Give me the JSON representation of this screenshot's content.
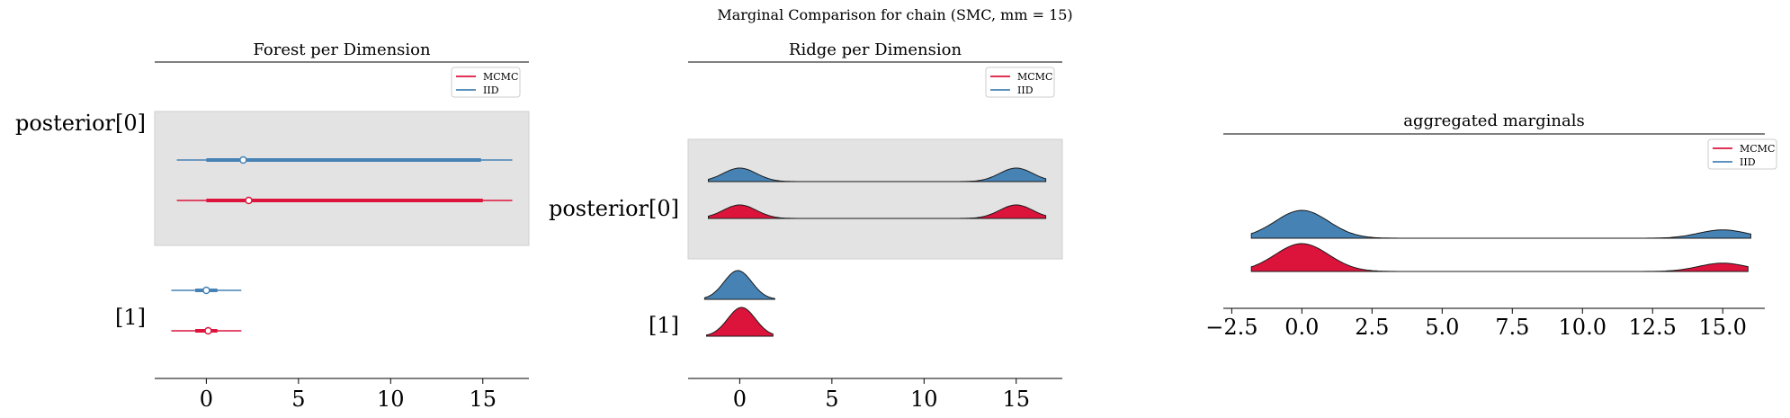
{
  "figure_title": "Marginal Comparison for chain (SMC, mm = 15)",
  "colors": {
    "mcmc": "#dc143c",
    "iid": "#4682b4",
    "band": "#e3e3e3",
    "outline": "#1a1a1a"
  },
  "chart_data": [
    {
      "type": "forest",
      "title": "Forest per Dimension",
      "legend": {
        "position": "top-right",
        "entries": [
          "MCMC",
          "IID"
        ]
      },
      "xlim": [
        -2.8,
        17.5
      ],
      "xticks": [
        0,
        5,
        10,
        15
      ],
      "ytick_labels": [
        "posterior[0]",
        "[1]"
      ],
      "rows": [
        {
          "label": "posterior[0]",
          "series": [
            {
              "name": "IID",
              "hdi_94": [
                -1.6,
                16.6
              ],
              "hdi_50": [
                0.0,
                14.9
              ],
              "point": 2.0
            },
            {
              "name": "MCMC",
              "hdi_94": [
                -1.6,
                16.6
              ],
              "hdi_50": [
                0.0,
                15.0
              ],
              "point": 2.3
            }
          ]
        },
        {
          "label": "[1]",
          "series": [
            {
              "name": "IID",
              "hdi_94": [
                -1.9,
                1.9
              ],
              "hdi_50": [
                -0.6,
                0.6
              ],
              "point": 0.0
            },
            {
              "name": "MCMC",
              "hdi_94": [
                -1.9,
                1.9
              ],
              "hdi_50": [
                -0.6,
                0.6
              ],
              "point": 0.1
            }
          ]
        }
      ]
    },
    {
      "type": "ridge",
      "title": "Ridge per Dimension",
      "legend": {
        "position": "top-right",
        "entries": [
          "MCMC",
          "IID"
        ]
      },
      "xlim": [
        -2.8,
        17.5
      ],
      "xticks": [
        0,
        5,
        10,
        15
      ],
      "ytick_labels": [
        "posterior[0]",
        "[1]"
      ],
      "rows": [
        {
          "label": "posterior[0]",
          "series": [
            {
              "name": "IID",
              "range": [
                -1.7,
                16.6
              ],
              "modes": [
                {
                  "mu": 0.0,
                  "sigma": 0.9,
                  "w": 1.0
                },
                {
                  "mu": 15.0,
                  "sigma": 0.9,
                  "w": 1.0
                }
              ]
            },
            {
              "name": "MCMC",
              "range": [
                -1.7,
                16.6
              ],
              "modes": [
                {
                  "mu": 0.0,
                  "sigma": 0.9,
                  "w": 1.0
                },
                {
                  "mu": 15.0,
                  "sigma": 0.9,
                  "w": 1.0
                }
              ]
            }
          ]
        },
        {
          "label": "[1]",
          "series": [
            {
              "name": "IID",
              "range": [
                -1.9,
                1.9
              ],
              "modes": [
                {
                  "mu": -0.1,
                  "sigma": 0.75,
                  "w": 1.0
                }
              ]
            },
            {
              "name": "MCMC",
              "range": [
                -1.8,
                1.8
              ],
              "modes": [
                {
                  "mu": 0.1,
                  "sigma": 0.75,
                  "w": 1.0
                }
              ]
            }
          ]
        }
      ]
    },
    {
      "type": "ridge",
      "title": "aggregated marginals",
      "legend": {
        "position": "top-right",
        "entries": [
          "MCMC",
          "IID"
        ]
      },
      "xlim": [
        -2.8,
        16.5
      ],
      "xticks": [
        -2.5,
        0.0,
        2.5,
        5.0,
        7.5,
        10.0,
        12.5,
        15.0
      ],
      "xtick_labels": [
        "−2.5",
        "0.0",
        "2.5",
        "5.0",
        "7.5",
        "10.0",
        "12.5",
        "15.0"
      ],
      "rows": [
        {
          "label": "",
          "series": [
            {
              "name": "IID",
              "range": [
                -1.8,
                16.0
              ],
              "modes": [
                {
                  "mu": 0.0,
                  "sigma": 0.95,
                  "w": 1.0
                },
                {
                  "mu": 15.0,
                  "sigma": 0.85,
                  "w": 0.3
                }
              ]
            },
            {
              "name": "MCMC",
              "range": [
                -1.8,
                15.9
              ],
              "modes": [
                {
                  "mu": 0.0,
                  "sigma": 0.95,
                  "w": 1.0
                },
                {
                  "mu": 15.0,
                  "sigma": 0.85,
                  "w": 0.3
                }
              ]
            }
          ]
        }
      ]
    }
  ]
}
